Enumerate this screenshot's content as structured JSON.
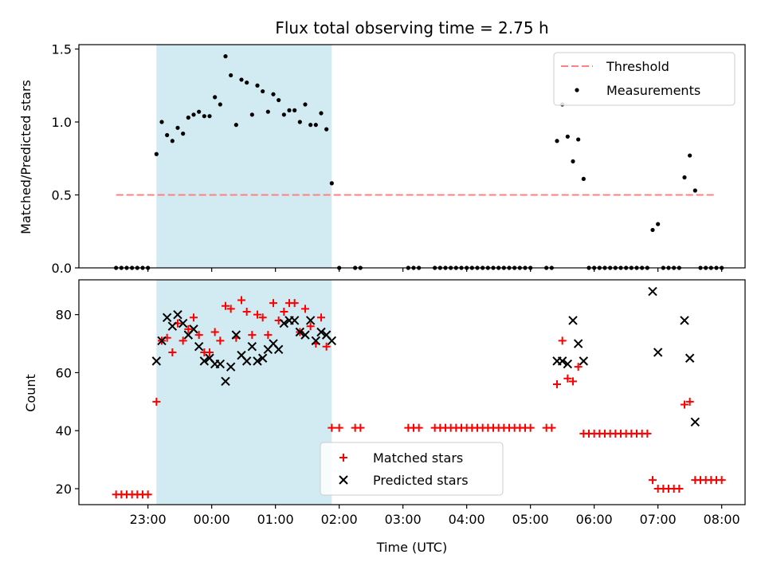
{
  "chart_data": [
    {
      "type": "scatter",
      "title": "Flux total observing time = 2.75 h",
      "xlabel": "",
      "ylabel": "Matched/Predicted stars",
      "ylim": [
        0,
        1.53
      ],
      "yticks": [
        0.0,
        0.5,
        1.0,
        1.5
      ],
      "ytick_labels": [
        "0.0",
        "0.5",
        "1.0",
        "1.5"
      ],
      "shaded_interval": {
        "x": [
          "23:08",
          "01:53"
        ],
        "color": "#add8e6"
      },
      "legend": {
        "position": "top-right",
        "entries": [
          "Threshold",
          "Measurements"
        ]
      },
      "threshold": {
        "name": "Threshold",
        "value": 0.5,
        "x": [
          "22:30",
          "07:55"
        ],
        "color": "#ff8080"
      },
      "series": [
        {
          "name": "Measurements",
          "color": "#000000",
          "points": [
            [
              "22:30",
              0
            ],
            [
              "22:35",
              0
            ],
            [
              "22:40",
              0
            ],
            [
              "22:45",
              0
            ],
            [
              "22:50",
              0
            ],
            [
              "22:55",
              0
            ],
            [
              "23:00",
              0
            ],
            [
              "23:08",
              0.78
            ],
            [
              "23:13",
              1.0
            ],
            [
              "23:18",
              0.91
            ],
            [
              "23:23",
              0.87
            ],
            [
              "23:28",
              0.96
            ],
            [
              "23:33",
              0.92
            ],
            [
              "23:38",
              1.03
            ],
            [
              "23:43",
              1.05
            ],
            [
              "23:48",
              1.07
            ],
            [
              "23:53",
              1.04
            ],
            [
              "23:58",
              1.04
            ],
            [
              "00:03",
              1.17
            ],
            [
              "00:08",
              1.12
            ],
            [
              "00:13",
              1.45
            ],
            [
              "00:18",
              1.32
            ],
            [
              "00:23",
              0.98
            ],
            [
              "00:28",
              1.29
            ],
            [
              "00:33",
              1.27
            ],
            [
              "00:38",
              1.05
            ],
            [
              "00:43",
              1.25
            ],
            [
              "00:48",
              1.21
            ],
            [
              "00:53",
              1.07
            ],
            [
              "00:58",
              1.19
            ],
            [
              "01:03",
              1.15
            ],
            [
              "01:08",
              1.05
            ],
            [
              "01:13",
              1.08
            ],
            [
              "01:18",
              1.08
            ],
            [
              "01:23",
              1.0
            ],
            [
              "01:28",
              1.12
            ],
            [
              "01:33",
              0.98
            ],
            [
              "01:38",
              0.98
            ],
            [
              "01:43",
              1.06
            ],
            [
              "01:48",
              0.95
            ],
            [
              "01:53",
              0.58
            ],
            [
              "02:00",
              0
            ],
            [
              "02:15",
              0
            ],
            [
              "02:20",
              0
            ],
            [
              "03:05",
              0
            ],
            [
              "03:10",
              0
            ],
            [
              "03:15",
              0
            ],
            [
              "03:30",
              0
            ],
            [
              "03:35",
              0
            ],
            [
              "03:40",
              0
            ],
            [
              "03:45",
              0
            ],
            [
              "03:50",
              0
            ],
            [
              "03:55",
              0
            ],
            [
              "04:00",
              0
            ],
            [
              "04:05",
              0
            ],
            [
              "04:10",
              0
            ],
            [
              "04:15",
              0
            ],
            [
              "04:20",
              0
            ],
            [
              "04:25",
              0
            ],
            [
              "04:30",
              0
            ],
            [
              "04:35",
              0
            ],
            [
              "04:40",
              0
            ],
            [
              "04:45",
              0
            ],
            [
              "04:50",
              0
            ],
            [
              "04:55",
              0
            ],
            [
              "05:00",
              0
            ],
            [
              "05:15",
              0
            ],
            [
              "05:20",
              0
            ],
            [
              "05:25",
              0.87
            ],
            [
              "05:30",
              1.12
            ],
            [
              "05:35",
              0.9
            ],
            [
              "05:40",
              0.73
            ],
            [
              "05:45",
              0.88
            ],
            [
              "05:50",
              0.61
            ],
            [
              "05:55",
              0
            ],
            [
              "06:00",
              0
            ],
            [
              "06:05",
              0
            ],
            [
              "06:10",
              0
            ],
            [
              "06:15",
              0
            ],
            [
              "06:20",
              0
            ],
            [
              "06:25",
              0
            ],
            [
              "06:30",
              0
            ],
            [
              "06:35",
              0
            ],
            [
              "06:40",
              0
            ],
            [
              "06:45",
              0
            ],
            [
              "06:50",
              0
            ],
            [
              "06:55",
              0.26
            ],
            [
              "07:00",
              0.3
            ],
            [
              "07:05",
              0
            ],
            [
              "07:10",
              0
            ],
            [
              "07:15",
              0
            ],
            [
              "07:20",
              0
            ],
            [
              "07:25",
              0.62
            ],
            [
              "07:30",
              0.77
            ],
            [
              "07:35",
              0.53
            ],
            [
              "07:40",
              0
            ],
            [
              "07:45",
              0
            ],
            [
              "07:50",
              0
            ],
            [
              "07:55",
              0
            ],
            [
              "08:00",
              0
            ]
          ]
        }
      ]
    },
    {
      "type": "scatter",
      "title": "",
      "xlabel": "Time (UTC)",
      "ylabel": "Count",
      "ylim": [
        14.5,
        92
      ],
      "yticks": [
        20,
        40,
        60,
        80
      ],
      "ytick_labels": [
        "20",
        "40",
        "60",
        "80"
      ],
      "xlim": [
        "21:55",
        "08:22"
      ],
      "xticks": [
        "23:00",
        "00:00",
        "01:00",
        "02:00",
        "03:00",
        "04:00",
        "05:00",
        "06:00",
        "07:00",
        "08:00"
      ],
      "xtick_labels": [
        "23:00",
        "00:00",
        "01:00",
        "02:00",
        "03:00",
        "04:00",
        "05:00",
        "06:00",
        "07:00",
        "08:00"
      ],
      "shaded_interval": {
        "x": [
          "23:08",
          "01:53"
        ],
        "color": "#add8e6"
      },
      "legend": {
        "position": "bottom-center",
        "entries": [
          "Matched stars",
          "Predicted stars"
        ]
      },
      "series": [
        {
          "name": "Matched stars",
          "color": "#ff0000",
          "marker": "plus",
          "points": [
            [
              "22:30",
              18
            ],
            [
              "22:35",
              18
            ],
            [
              "22:40",
              18
            ],
            [
              "22:45",
              18
            ],
            [
              "22:50",
              18
            ],
            [
              "22:55",
              18
            ],
            [
              "23:00",
              18
            ],
            [
              "23:08",
              50
            ],
            [
              "23:13",
              71
            ],
            [
              "23:18",
              72
            ],
            [
              "23:23",
              67
            ],
            [
              "23:28",
              77
            ],
            [
              "23:33",
              71
            ],
            [
              "23:38",
              75
            ],
            [
              "23:43",
              79
            ],
            [
              "23:48",
              73
            ],
            [
              "23:53",
              67
            ],
            [
              "23:58",
              67
            ],
            [
              "00:03",
              74
            ],
            [
              "00:08",
              71
            ],
            [
              "00:13",
              83
            ],
            [
              "00:18",
              82
            ],
            [
              "00:23",
              72
            ],
            [
              "00:28",
              85
            ],
            [
              "00:33",
              81
            ],
            [
              "00:38",
              73
            ],
            [
              "00:43",
              80
            ],
            [
              "00:48",
              79
            ],
            [
              "00:53",
              73
            ],
            [
              "00:58",
              84
            ],
            [
              "01:03",
              78
            ],
            [
              "01:08",
              81
            ],
            [
              "01:13",
              84
            ],
            [
              "01:18",
              84
            ],
            [
              "01:23",
              74
            ],
            [
              "01:28",
              82
            ],
            [
              "01:33",
              76
            ],
            [
              "01:38",
              70
            ],
            [
              "01:43",
              79
            ],
            [
              "01:48",
              69
            ],
            [
              "01:53",
              41
            ],
            [
              "02:00",
              41
            ],
            [
              "02:15",
              41
            ],
            [
              "02:20",
              41
            ],
            [
              "03:05",
              41
            ],
            [
              "03:10",
              41
            ],
            [
              "03:15",
              41
            ],
            [
              "03:30",
              41
            ],
            [
              "03:35",
              41
            ],
            [
              "03:40",
              41
            ],
            [
              "03:45",
              41
            ],
            [
              "03:50",
              41
            ],
            [
              "03:55",
              41
            ],
            [
              "04:00",
              41
            ],
            [
              "04:05",
              41
            ],
            [
              "04:10",
              41
            ],
            [
              "04:15",
              41
            ],
            [
              "04:20",
              41
            ],
            [
              "04:25",
              41
            ],
            [
              "04:30",
              41
            ],
            [
              "04:35",
              41
            ],
            [
              "04:40",
              41
            ],
            [
              "04:45",
              41
            ],
            [
              "04:50",
              41
            ],
            [
              "04:55",
              41
            ],
            [
              "05:00",
              41
            ],
            [
              "05:15",
              41
            ],
            [
              "05:20",
              41
            ],
            [
              "05:25",
              56
            ],
            [
              "05:30",
              71
            ],
            [
              "05:35",
              58
            ],
            [
              "05:40",
              57
            ],
            [
              "05:45",
              62
            ],
            [
              "05:50",
              39
            ],
            [
              "05:55",
              39
            ],
            [
              "06:00",
              39
            ],
            [
              "06:05",
              39
            ],
            [
              "06:10",
              39
            ],
            [
              "06:15",
              39
            ],
            [
              "06:20",
              39
            ],
            [
              "06:25",
              39
            ],
            [
              "06:30",
              39
            ],
            [
              "06:35",
              39
            ],
            [
              "06:40",
              39
            ],
            [
              "06:45",
              39
            ],
            [
              "06:50",
              39
            ],
            [
              "06:55",
              23
            ],
            [
              "07:00",
              20
            ],
            [
              "07:05",
              20
            ],
            [
              "07:10",
              20
            ],
            [
              "07:15",
              20
            ],
            [
              "07:20",
              20
            ],
            [
              "07:25",
              49
            ],
            [
              "07:30",
              50
            ],
            [
              "07:35",
              23
            ],
            [
              "07:40",
              23
            ],
            [
              "07:45",
              23
            ],
            [
              "07:50",
              23
            ],
            [
              "07:55",
              23
            ],
            [
              "08:00",
              23
            ]
          ]
        },
        {
          "name": "Predicted stars",
          "color": "#000000",
          "marker": "x",
          "points": [
            [
              "23:08",
              64
            ],
            [
              "23:13",
              71
            ],
            [
              "23:18",
              79
            ],
            [
              "23:23",
              76
            ],
            [
              "23:28",
              80
            ],
            [
              "23:33",
              77
            ],
            [
              "23:38",
              73
            ],
            [
              "23:43",
              75
            ],
            [
              "23:48",
              69
            ],
            [
              "23:53",
              64
            ],
            [
              "23:58",
              65
            ],
            [
              "00:03",
              63
            ],
            [
              "00:08",
              63
            ],
            [
              "00:13",
              57
            ],
            [
              "00:18",
              62
            ],
            [
              "00:23",
              73
            ],
            [
              "00:28",
              66
            ],
            [
              "00:33",
              64
            ],
            [
              "00:38",
              69
            ],
            [
              "00:43",
              64
            ],
            [
              "00:48",
              65
            ],
            [
              "00:53",
              68
            ],
            [
              "00:58",
              70
            ],
            [
              "01:03",
              68
            ],
            [
              "01:08",
              77
            ],
            [
              "01:13",
              78
            ],
            [
              "01:18",
              78
            ],
            [
              "01:23",
              74
            ],
            [
              "01:28",
              73
            ],
            [
              "01:33",
              78
            ],
            [
              "01:38",
              71
            ],
            [
              "01:43",
              74
            ],
            [
              "01:48",
              73
            ],
            [
              "01:53",
              71
            ],
            [
              "05:25",
              64
            ],
            [
              "05:30",
              64
            ],
            [
              "05:35",
              63
            ],
            [
              "05:40",
              78
            ],
            [
              "05:45",
              70
            ],
            [
              "05:50",
              64
            ],
            [
              "06:55",
              88
            ],
            [
              "07:00",
              67
            ],
            [
              "07:25",
              78
            ],
            [
              "07:30",
              65
            ],
            [
              "07:35",
              43
            ]
          ]
        }
      ]
    }
  ]
}
